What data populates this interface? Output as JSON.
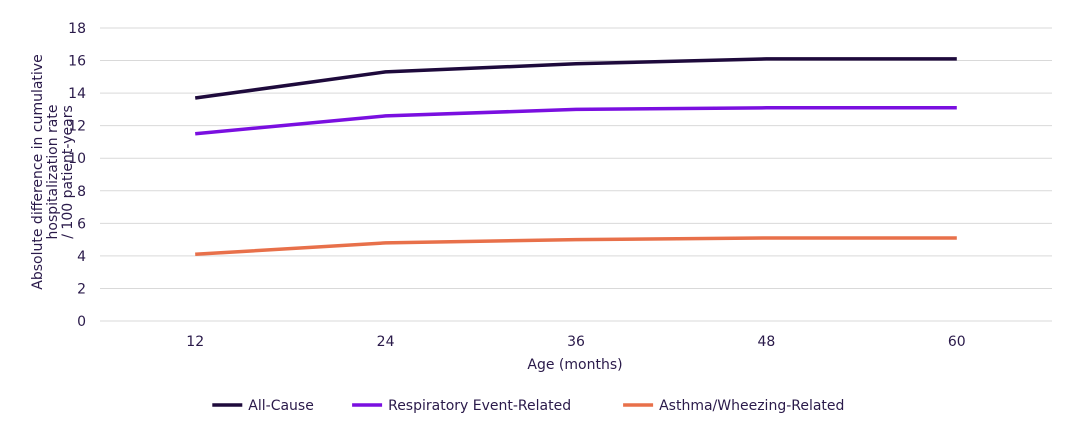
{
  "chart_data": {
    "type": "line",
    "title": "",
    "xlabel": "Age (months)",
    "ylabel_lines": [
      "Absolute difference in cumulative",
      "hospitalization rate",
      "/ 100 patient-years"
    ],
    "x": [
      12,
      24,
      36,
      48,
      60
    ],
    "x_tick_labels": [
      "12",
      "24",
      "36",
      "48",
      "60"
    ],
    "ylim": [
      0,
      18
    ],
    "y_ticks": [
      0,
      2,
      4,
      6,
      8,
      10,
      12,
      14,
      16,
      18
    ],
    "y_tick_labels": [
      "0",
      "2",
      "4",
      "6",
      "8",
      "10",
      "12",
      "14",
      "16",
      "18"
    ],
    "grid": "horizontal",
    "legend_position": "bottom",
    "series": [
      {
        "name": "All-Cause",
        "color": "#1e0a3c",
        "values": [
          13.7,
          15.3,
          15.8,
          16.1,
          16.1
        ]
      },
      {
        "name": "Respiratory Event-Related",
        "color": "#7a0fe0",
        "values": [
          11.5,
          12.6,
          13.0,
          13.1,
          13.1
        ]
      },
      {
        "name": "Asthma/Wheezing-Related",
        "color": "#e8704a",
        "values": [
          4.1,
          4.8,
          5.0,
          5.1,
          5.1
        ]
      }
    ]
  }
}
